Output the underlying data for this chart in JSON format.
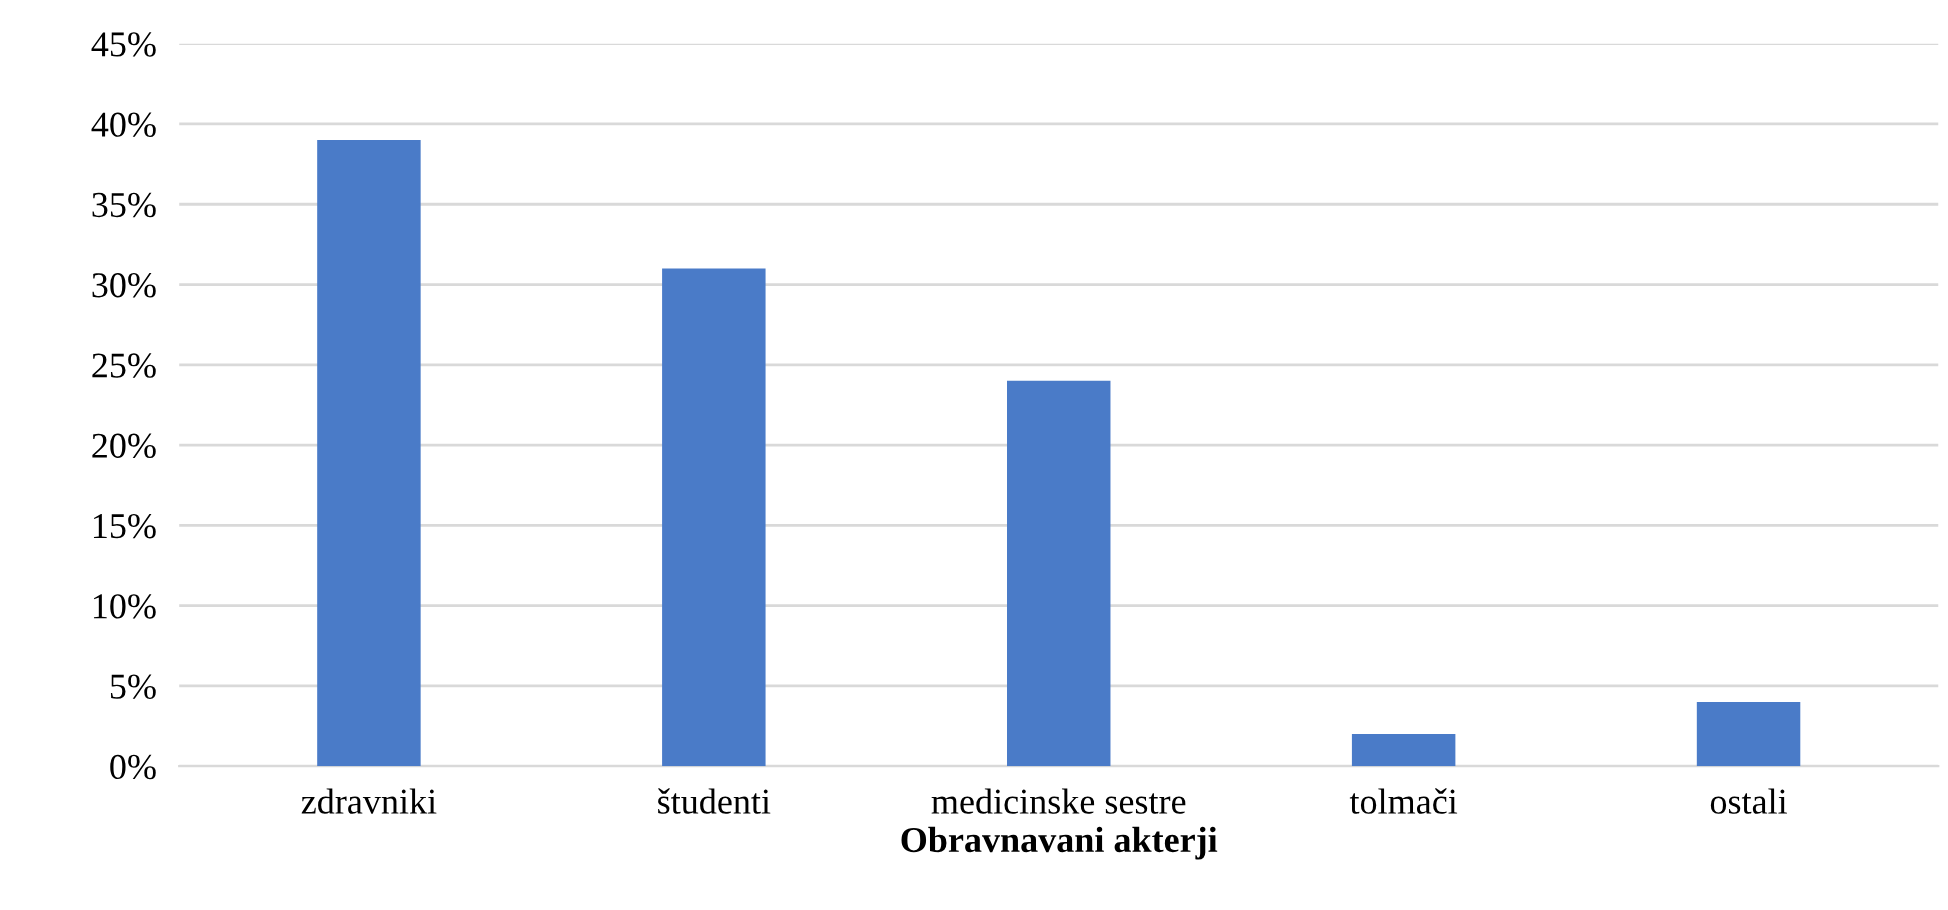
{
  "chart_data": {
    "type": "bar",
    "categories": [
      "zdravniki",
      "študenti",
      "medicinske sestre",
      "tolmači",
      "ostali"
    ],
    "values": [
      39,
      31,
      24,
      2,
      4
    ],
    "color": "#4a7bc8",
    "xlabel": "Obravnavani akterji",
    "ylim": [
      0,
      45
    ],
    "yticks": [
      {
        "value": 0,
        "label": "0%"
      },
      {
        "value": 5,
        "label": "5%"
      },
      {
        "value": 10,
        "label": "10%"
      },
      {
        "value": 15,
        "label": "15%"
      },
      {
        "value": 20,
        "label": "20%"
      },
      {
        "value": 25,
        "label": "25%"
      },
      {
        "value": 30,
        "label": "30%"
      },
      {
        "value": 35,
        "label": "35%"
      },
      {
        "value": 40,
        "label": "40%"
      },
      {
        "value": 45,
        "label": "45%"
      }
    ],
    "grid": "y",
    "legend": false
  }
}
